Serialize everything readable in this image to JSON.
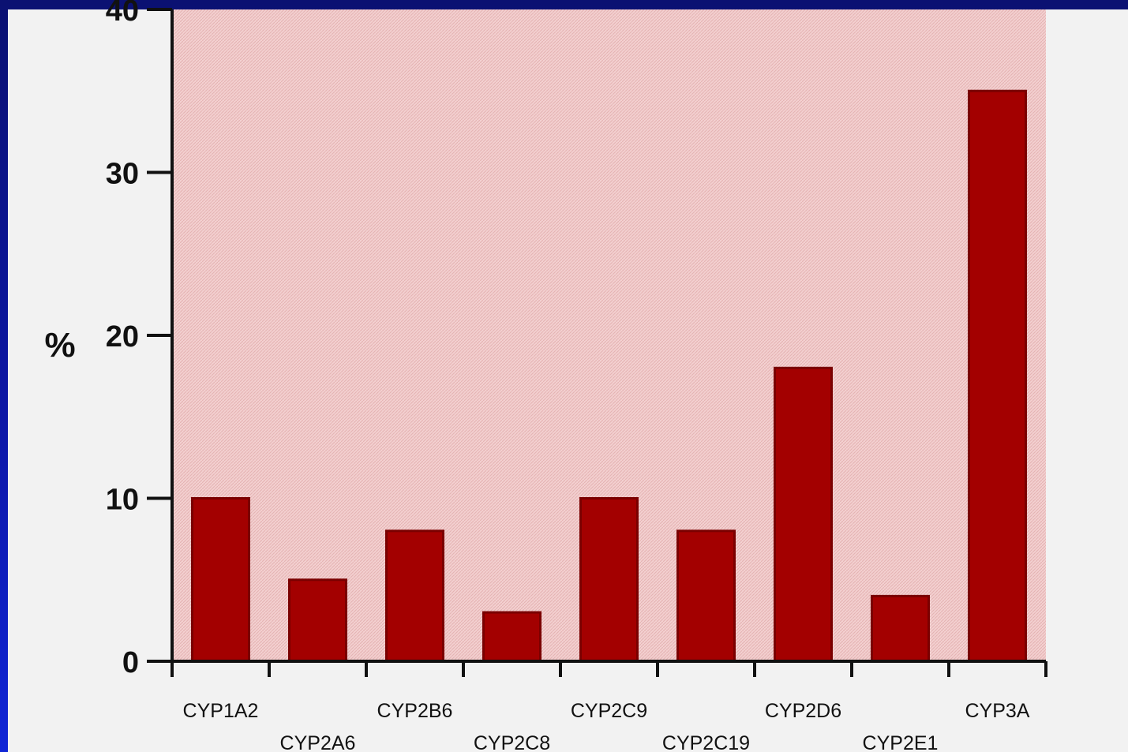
{
  "chart_data": {
    "type": "bar",
    "title": "",
    "xlabel": "",
    "ylabel": "%",
    "ylim": [
      0,
      40
    ],
    "yticks": [
      0,
      10,
      20,
      30,
      40
    ],
    "grid": false,
    "categories": [
      "CYP1A2",
      "CYP2A6",
      "CYP2B6",
      "CYP2C8",
      "CYP2C9",
      "CYP2C19",
      "CYP2D6",
      "CYP2E1",
      "CYP3A"
    ],
    "values": [
      10,
      5,
      8,
      3,
      10,
      8,
      18,
      4,
      35
    ],
    "colors": {
      "bar": "#a30000",
      "bar_edge": "#7a0000",
      "plot_background": "#f2caca",
      "axis": "#111111"
    }
  }
}
